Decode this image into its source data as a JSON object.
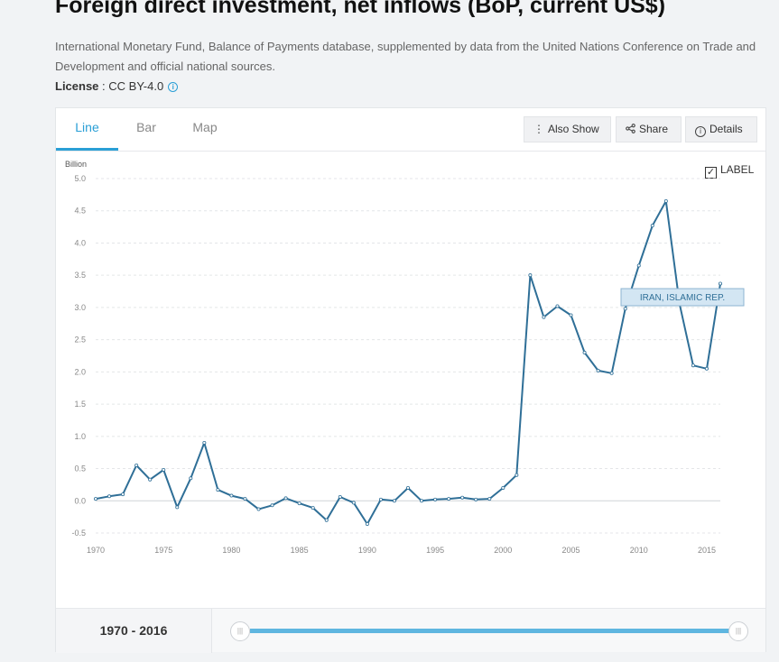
{
  "page": {
    "title": "Foreign direct investment, net inflows (BoP, current US$)",
    "source": "International Monetary Fund, Balance of Payments database, supplemented by data from the United Nations Conference on Trade and Development and official national sources.",
    "license_label": "License",
    "license_separator": " : ",
    "license_value": "CC BY-4.0",
    "info_icon": "i"
  },
  "tabs": [
    {
      "label": "Line",
      "active": true
    },
    {
      "label": "Bar",
      "active": false
    },
    {
      "label": "Map",
      "active": false
    }
  ],
  "toolbar": {
    "also_show": "Also Show",
    "share": "Share",
    "details": "Details",
    "also_show_icon": "⋮",
    "share_icon": "share-icon",
    "details_icon": "i"
  },
  "label_toggle": {
    "text": "LABEL",
    "checked": true,
    "check_glyph": "✓"
  },
  "colors": {
    "line": "#2f6f97",
    "accent": "#2a9fd6",
    "slider": "#5fb6e0",
    "series_label_bg": "#d3e6f3"
  },
  "chart_data": {
    "type": "line",
    "y_unit": "Billion",
    "ylim": [
      -0.5,
      5.0
    ],
    "y_ticks": [
      "-0.5",
      "0.0",
      "0.5",
      "1.0",
      "1.5",
      "2.0",
      "2.5",
      "3.0",
      "3.5",
      "4.0",
      "4.5",
      "5.0"
    ],
    "xlim": [
      1970,
      2016
    ],
    "x_ticks": [
      "1970",
      "1975",
      "1980",
      "1985",
      "1990",
      "1995",
      "2000",
      "2005",
      "2010",
      "2015"
    ],
    "grid": true,
    "series": [
      {
        "name": "IRAN, ISLAMIC REP.",
        "x": [
          1970,
          1971,
          1972,
          1973,
          1974,
          1975,
          1976,
          1977,
          1978,
          1979,
          1980,
          1981,
          1982,
          1983,
          1984,
          1985,
          1986,
          1987,
          1988,
          1989,
          1990,
          1991,
          1992,
          1993,
          1994,
          1995,
          1996,
          1997,
          1998,
          1999,
          2000,
          2001,
          2002,
          2003,
          2004,
          2005,
          2006,
          2007,
          2008,
          2009,
          2010,
          2011,
          2012,
          2013,
          2014,
          2015,
          2016
        ],
        "values": [
          0.03,
          0.07,
          0.1,
          0.55,
          0.33,
          0.48,
          -0.1,
          0.35,
          0.9,
          0.17,
          0.08,
          0.03,
          -0.13,
          -0.07,
          0.04,
          -0.04,
          -0.11,
          -0.3,
          0.06,
          -0.03,
          -0.36,
          0.02,
          0.0,
          0.2,
          0.0,
          0.02,
          0.03,
          0.05,
          0.02,
          0.03,
          0.2,
          0.4,
          3.5,
          2.85,
          3.02,
          2.88,
          2.3,
          2.02,
          1.98,
          2.98,
          3.65,
          4.27,
          4.65,
          3.05,
          2.1,
          2.05,
          3.37
        ]
      }
    ]
  },
  "footer": {
    "range_start": "1970",
    "range_sep": " - ",
    "range_end": "2016",
    "handle_glyph": "|||"
  }
}
